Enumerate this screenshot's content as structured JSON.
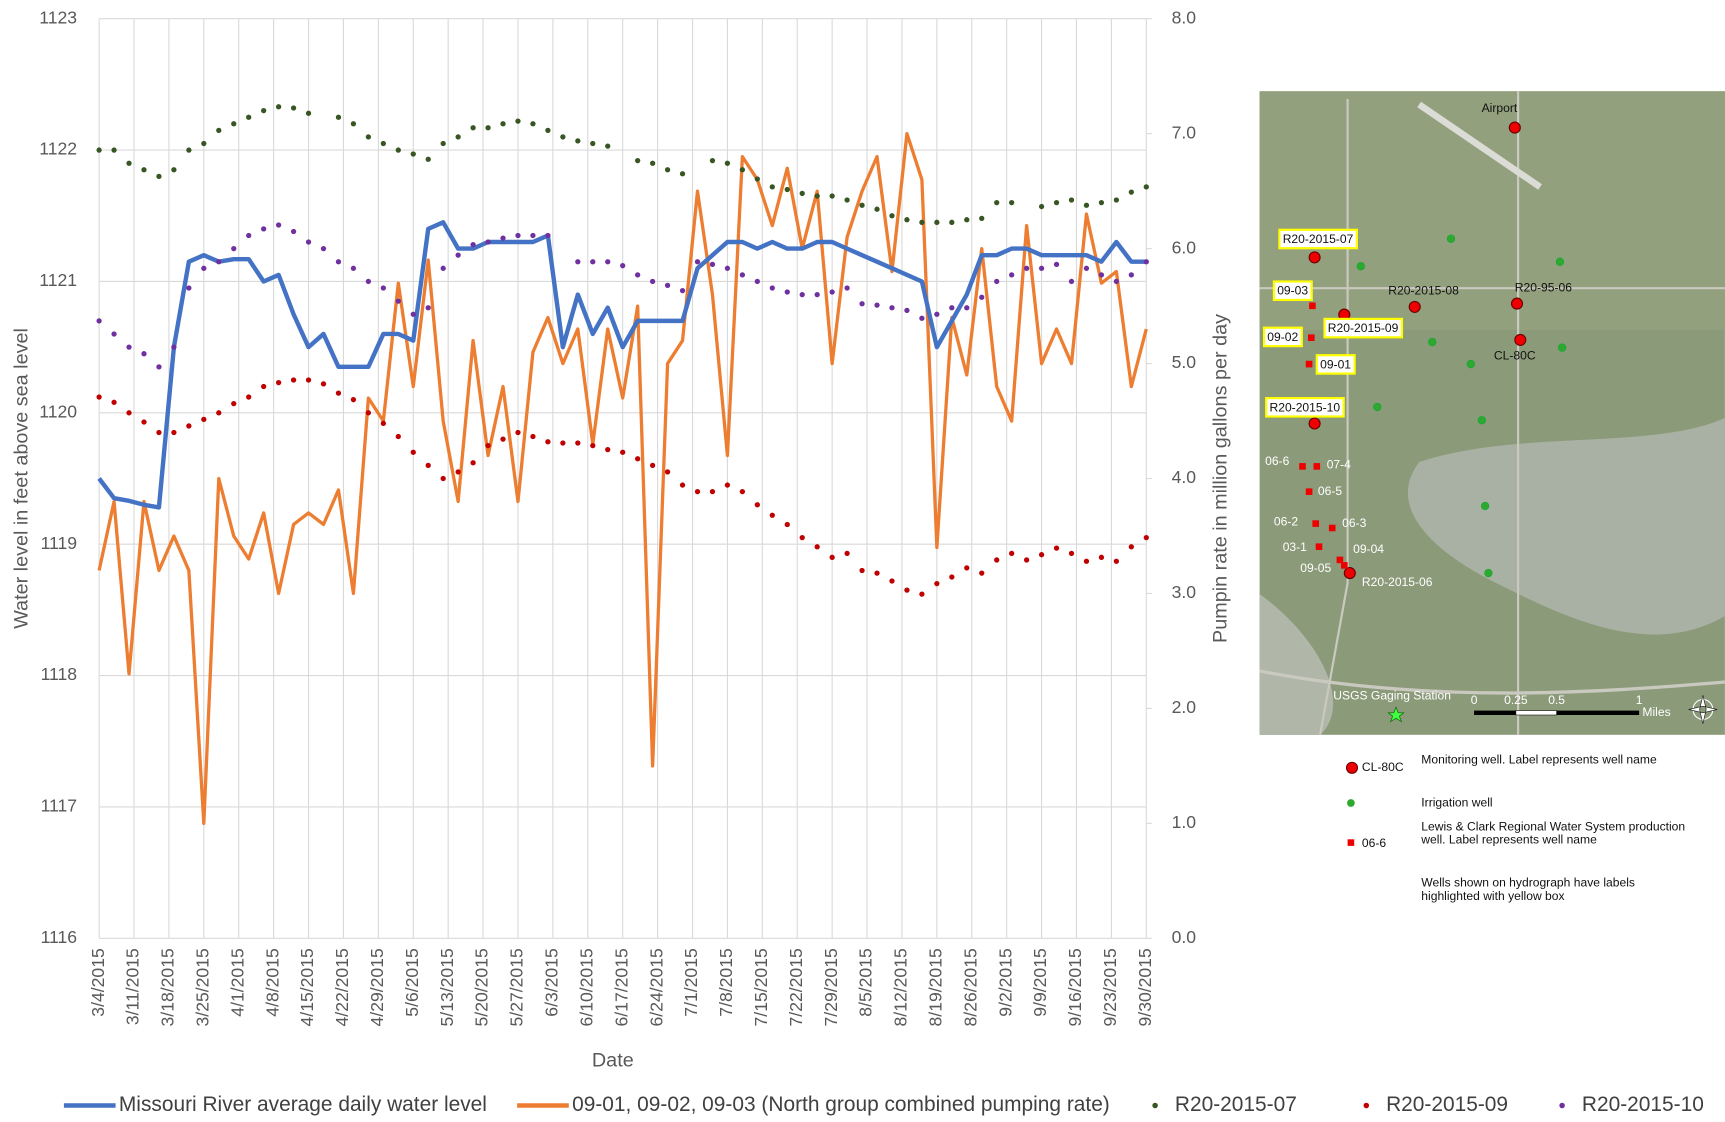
{
  "chart_data": {
    "type": "line",
    "x_label": "Date",
    "y_label": "Water level in feet above sea level",
    "y2_label": "Pumpin rate in million gallons per day",
    "xlim": [
      "3/4/2015",
      "9/30/2015"
    ],
    "xticks": [
      "3/4/2015",
      "3/11/2015",
      "3/18/2015",
      "3/25/2015",
      "4/1/2015",
      "4/8/2015",
      "4/15/2015",
      "4/22/2015",
      "4/29/2015",
      "5/6/2015",
      "5/13/2015",
      "5/20/2015",
      "5/27/2015",
      "6/3/2015",
      "6/10/2015",
      "6/17/2015",
      "6/24/2015",
      "7/1/2015",
      "7/8/2015",
      "7/15/2015",
      "7/22/2015",
      "7/29/2015",
      "8/5/2015",
      "8/12/2015",
      "8/19/2015",
      "8/26/2015",
      "9/2/2015",
      "9/9/2015",
      "9/16/2015",
      "9/23/2015",
      "9/30/2015"
    ],
    "ylim": [
      1116,
      1123
    ],
    "yticks": [
      1116,
      1117,
      1118,
      1119,
      1120,
      1121,
      1122,
      1123
    ],
    "y2lim": [
      0,
      8
    ],
    "y2ticks": [
      {
        "value": 0,
        "label": "0.0"
      },
      {
        "value": 1,
        "label": "1.0"
      },
      {
        "value": 2,
        "label": "2.0"
      },
      {
        "value": 3,
        "label": "3.0"
      },
      {
        "value": 4,
        "label": "4.0"
      },
      {
        "value": 5,
        "label": "5.0"
      },
      {
        "value": 6,
        "label": "6.0"
      },
      {
        "value": 7,
        "label": "7.0"
      },
      {
        "value": 8,
        "label": "8.0"
      }
    ],
    "grid": true,
    "legend": "bottom",
    "x": [
      "3/4/2015",
      "3/7/2015",
      "3/10/2015",
      "3/13/2015",
      "3/16/2015",
      "3/19/2015",
      "3/22/2015",
      "3/25/2015",
      "3/28/2015",
      "3/31/2015",
      "4/3/2015",
      "4/6/2015",
      "4/9/2015",
      "4/12/2015",
      "4/15/2015",
      "4/18/2015",
      "4/21/2015",
      "4/24/2015",
      "4/27/2015",
      "4/30/2015",
      "5/3/2015",
      "5/6/2015",
      "5/9/2015",
      "5/12/2015",
      "5/15/2015",
      "5/18/2015",
      "5/21/2015",
      "5/24/2015",
      "5/27/2015",
      "5/30/2015",
      "6/2/2015",
      "6/5/2015",
      "6/8/2015",
      "6/11/2015",
      "6/14/2015",
      "6/17/2015",
      "6/20/2015",
      "6/23/2015",
      "6/26/2015",
      "6/29/2015",
      "7/2/2015",
      "7/5/2015",
      "7/8/2015",
      "7/11/2015",
      "7/14/2015",
      "7/17/2015",
      "7/20/2015",
      "7/23/2015",
      "7/26/2015",
      "7/29/2015",
      "8/1/2015",
      "8/4/2015",
      "8/7/2015",
      "8/10/2015",
      "8/13/2015",
      "8/16/2015",
      "8/19/2015",
      "8/22/2015",
      "8/25/2015",
      "8/28/2015",
      "8/31/2015",
      "9/3/2015",
      "9/6/2015",
      "9/9/2015",
      "9/12/2015",
      "9/15/2015",
      "9/18/2015",
      "9/21/2015",
      "9/24/2015",
      "9/27/2015",
      "9/30/2015"
    ],
    "series": [
      {
        "name": "Missouri River average daily water level",
        "color": "#4472c4",
        "mode": "line",
        "axis": "y",
        "values": [
          1119.5,
          1119.35,
          1119.33,
          1119.3,
          1119.28,
          1120.5,
          1121.15,
          1121.2,
          1121.15,
          1121.17,
          1121.17,
          1121.0,
          1121.05,
          1120.75,
          1120.5,
          1120.6,
          1120.35,
          1120.35,
          1120.35,
          1120.6,
          1120.6,
          1120.55,
          1121.4,
          1121.45,
          1121.25,
          1121.25,
          1121.3,
          1121.3,
          1121.3,
          1121.3,
          1121.35,
          1120.5,
          1120.9,
          1120.6,
          1120.8,
          1120.5,
          1120.7,
          1120.7,
          1120.7,
          1120.7,
          1121.1,
          1121.2,
          1121.3,
          1121.3,
          1121.25,
          1121.3,
          1121.25,
          1121.25,
          1121.3,
          1121.3,
          1121.25,
          1121.2,
          1121.15,
          1121.1,
          1121.05,
          1121.0,
          1120.5,
          1120.7,
          1120.9,
          1121.2,
          1121.2,
          1121.25,
          1121.25,
          1121.2,
          1121.2,
          1121.2,
          1121.2,
          1121.15,
          1121.3,
          1121.15,
          1121.15
        ]
      },
      {
        "name": "09-01, 09-02, 09-03 (North group combined pumping rate)",
        "color": "#ed7d31",
        "mode": "line",
        "axis": "y2",
        "values": [
          3.2,
          3.8,
          2.3,
          3.8,
          3.2,
          3.5,
          3.2,
          1.0,
          4.0,
          3.5,
          3.3,
          3.7,
          3.0,
          3.6,
          3.7,
          3.6,
          3.9,
          3.0,
          4.7,
          4.5,
          5.7,
          4.8,
          5.9,
          4.5,
          3.8,
          5.2,
          4.2,
          4.8,
          3.8,
          5.1,
          5.4,
          5.0,
          5.3,
          4.3,
          5.3,
          4.7,
          5.5,
          1.5,
          5.0,
          5.2,
          6.5,
          5.6,
          4.2,
          6.8,
          6.6,
          6.2,
          6.7,
          6.0,
          6.5,
          5.0,
          6.1,
          6.5,
          6.8,
          5.8,
          7.0,
          6.6,
          3.4,
          5.4,
          4.9,
          6.0,
          4.8,
          4.5,
          6.2,
          5.0,
          5.3,
          5.0,
          6.3,
          5.7,
          5.8,
          4.8,
          5.3
        ]
      },
      {
        "name": "R20-2015-07",
        "color": "#375623",
        "mode": "markers",
        "axis": "y",
        "values": [
          1122.0,
          1122.0,
          1121.9,
          1121.85,
          1121.8,
          1121.85,
          1122.0,
          1122.05,
          1122.15,
          1122.2,
          1122.25,
          1122.3,
          1122.33,
          1122.32,
          1122.28,
          null,
          1122.25,
          1122.2,
          1122.1,
          1122.05,
          1122.0,
          1121.97,
          1121.93,
          1122.05,
          1122.1,
          1122.17,
          1122.17,
          1122.2,
          1122.22,
          1122.2,
          1122.15,
          1122.1,
          1122.07,
          1122.05,
          1122.03,
          null,
          1121.92,
          1121.9,
          1121.85,
          1121.82,
          null,
          1121.92,
          1121.9,
          1121.85,
          1121.78,
          1121.72,
          1121.7,
          1121.67,
          1121.65,
          1121.65,
          1121.62,
          1121.58,
          1121.55,
          1121.5,
          1121.47,
          1121.45,
          1121.45,
          1121.45,
          1121.47,
          1121.48,
          1121.6,
          1121.6,
          null,
          1121.57,
          1121.6,
          1121.62,
          1121.58,
          1121.6,
          1121.62,
          1121.68,
          1121.72
        ]
      },
      {
        "name": "R20-2015-09",
        "color": "#c00000",
        "mode": "markers",
        "axis": "y",
        "values": [
          1120.12,
          1120.08,
          1120.0,
          1119.93,
          1119.85,
          1119.85,
          1119.9,
          1119.95,
          1120.0,
          1120.07,
          1120.12,
          1120.2,
          1120.23,
          1120.25,
          1120.25,
          1120.22,
          1120.15,
          1120.1,
          1120.0,
          1119.92,
          1119.82,
          1119.7,
          1119.6,
          1119.5,
          1119.55,
          1119.62,
          1119.75,
          1119.8,
          1119.85,
          1119.82,
          1119.78,
          1119.77,
          1119.77,
          1119.75,
          1119.72,
          1119.7,
          1119.65,
          1119.6,
          1119.55,
          1119.45,
          1119.4,
          1119.4,
          1119.45,
          1119.4,
          1119.3,
          1119.22,
          1119.15,
          1119.05,
          1118.98,
          1118.9,
          1118.93,
          1118.8,
          1118.78,
          1118.72,
          1118.65,
          1118.62,
          1118.7,
          1118.75,
          1118.82,
          1118.78,
          1118.88,
          1118.93,
          1118.88,
          1118.92,
          1118.97,
          1118.93,
          1118.87,
          1118.9,
          1118.87,
          1118.98,
          1119.05
        ]
      },
      {
        "name": "R20-2015-10",
        "color": "#7030a0",
        "mode": "markers",
        "axis": "y",
        "values": [
          1120.7,
          1120.6,
          1120.5,
          1120.45,
          1120.35,
          1120.5,
          1120.95,
          1121.1,
          1121.15,
          1121.25,
          1121.35,
          1121.4,
          1121.43,
          1121.38,
          1121.3,
          1121.25,
          1121.15,
          1121.1,
          1121.0,
          1120.95,
          1120.85,
          1120.75,
          1120.8,
          1121.1,
          1121.2,
          1121.28,
          1121.3,
          1121.33,
          1121.35,
          1121.35,
          1121.35,
          null,
          1121.15,
          1121.15,
          1121.15,
          1121.12,
          1121.05,
          1121.0,
          1120.97,
          1120.93,
          1121.15,
          1121.13,
          1121.1,
          1121.05,
          1121.0,
          1120.95,
          1120.92,
          1120.9,
          1120.9,
          1120.92,
          1120.95,
          1120.83,
          1120.82,
          1120.8,
          1120.78,
          1120.72,
          1120.75,
          1120.8,
          1120.8,
          1120.88,
          1121.0,
          1121.05,
          1121.1,
          1121.1,
          1121.13,
          1121.0,
          1121.1,
          1121.05,
          1121.0,
          1121.05,
          1121.15
        ]
      }
    ]
  },
  "map": {
    "labels": [
      "Airport",
      "R20-2015-07",
      "09-03",
      "R20-2015-08",
      "R20-95-06",
      "09-02",
      "R20-2015-09",
      "CL-80C",
      "09-01",
      "R20-2015-10",
      "06-6",
      "07-4",
      "06-5",
      "06-2",
      "06-3",
      "03-1",
      "09-04",
      "09-05",
      "R20-2015-06",
      "USGS Gaging Station"
    ],
    "scale_labels": [
      "0",
      "0.25",
      "0.5",
      "1"
    ],
    "scale_unit": "Miles",
    "legend": [
      {
        "symbol_label": "CL-80C",
        "text": "Monitoring well. Label represents well name"
      },
      {
        "text": "Irrigation well"
      },
      {
        "symbol_label": "06-6",
        "text": "Lewis & Clark Regional Water System production well. Label represents well name"
      },
      {
        "text": "Wells shown on hydrograph have labels highlighted with yellow box"
      }
    ]
  }
}
